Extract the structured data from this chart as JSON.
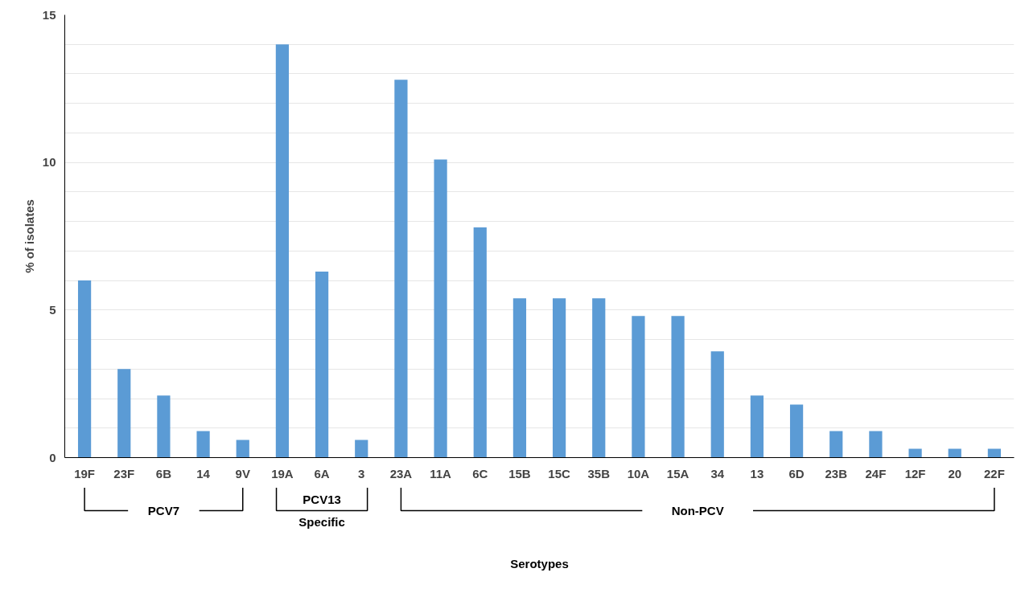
{
  "chart_data": {
    "type": "bar",
    "ylabel": "% of isolates",
    "categories": [
      "19F",
      "23F",
      "6B",
      "14",
      "9V",
      "19A",
      "6A",
      "3",
      "23A",
      "11A",
      "6C",
      "15B",
      "15C",
      "35B",
      "10A",
      "15A",
      "34",
      "13",
      "6D",
      "23B",
      "24F",
      "12F",
      "20",
      "22F"
    ],
    "values": [
      6.0,
      3.0,
      2.1,
      0.9,
      0.6,
      14.0,
      6.3,
      0.6,
      12.8,
      10.1,
      7.8,
      5.4,
      5.4,
      5.4,
      4.8,
      4.8,
      3.6,
      2.1,
      1.8,
      0.9,
      0.9,
      0.3,
      0.3,
      0.3
    ],
    "color": "#5b9bd5",
    "ylim": [
      0,
      15
    ],
    "yticks": [
      0,
      {
        "value": 1,
        "label": null
      },
      {
        "value": 2,
        "label": null
      },
      {
        "value": 3,
        "label": null
      },
      {
        "value": 4,
        "label": null
      },
      5,
      {
        "value": 6,
        "label": null
      },
      {
        "value": 7,
        "label": null
      },
      {
        "value": 8,
        "label": null
      },
      {
        "value": 9,
        "label": null
      },
      10,
      {
        "value": 11,
        "label": null
      },
      {
        "value": 12,
        "label": null
      },
      {
        "value": 13,
        "label": null
      },
      {
        "value": 14,
        "label": null
      },
      15
    ],
    "grid": "y",
    "annotations": [
      "PCV7",
      "PCV13\nSpecific",
      "Non-PCV",
      "Serotypes"
    ]
  }
}
